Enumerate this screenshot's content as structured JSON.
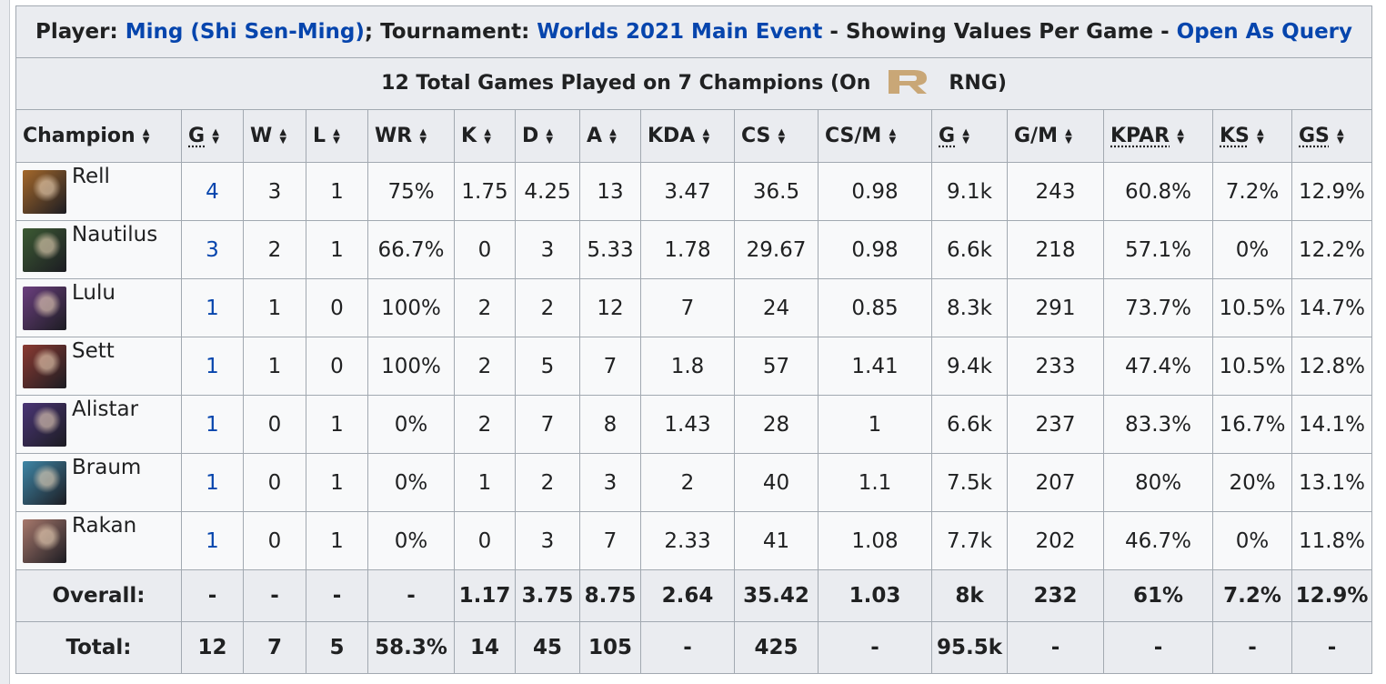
{
  "caption": {
    "player_label": "Player:",
    "player_link": "Ming (Shi Sen-Ming)",
    "sep1": ";",
    "tournament_label": "Tournament:",
    "tournament_link": "Worlds 2021 Main Event",
    "mid_text": "- Showing Values Per Game -",
    "query_link": "Open As Query"
  },
  "subtitle": {
    "prefix": "12 Total Games Played on 7 Champions (On",
    "team": "RNG)",
    "logo_color": "#c9a777"
  },
  "headers": [
    "Champion",
    "G",
    "W",
    "L",
    "WR",
    "K",
    "D",
    "A",
    "KDA",
    "CS",
    "CS/M",
    "G",
    "G/M",
    "KPAR",
    "KS",
    "GS"
  ],
  "champion_colors": {
    "Rell": "#a4682b",
    "Nautilus": "#3c5a33",
    "Lulu": "#6b3f7e",
    "Sett": "#8a3a32",
    "Alistar": "#4a3575",
    "Braum": "#3f86a6",
    "Rakan": "#a7786c"
  },
  "rows": [
    {
      "name": "Rell",
      "g": "4",
      "w": "3",
      "l": "1",
      "wr": "75%",
      "k": "1.75",
      "d": "4.25",
      "a": "13",
      "kda": "3.47",
      "cs": "36.5",
      "csm": "0.98",
      "gold": "9.1k",
      "gm": "243",
      "kpar": "60.8%",
      "ks": "7.2%",
      "gs": "12.9%"
    },
    {
      "name": "Nautilus",
      "g": "3",
      "w": "2",
      "l": "1",
      "wr": "66.7%",
      "k": "0",
      "d": "3",
      "a": "5.33",
      "kda": "1.78",
      "cs": "29.67",
      "csm": "0.98",
      "gold": "6.6k",
      "gm": "218",
      "kpar": "57.1%",
      "ks": "0%",
      "gs": "12.2%"
    },
    {
      "name": "Lulu",
      "g": "1",
      "w": "1",
      "l": "0",
      "wr": "100%",
      "k": "2",
      "d": "2",
      "a": "12",
      "kda": "7",
      "cs": "24",
      "csm": "0.85",
      "gold": "8.3k",
      "gm": "291",
      "kpar": "73.7%",
      "ks": "10.5%",
      "gs": "14.7%"
    },
    {
      "name": "Sett",
      "g": "1",
      "w": "1",
      "l": "0",
      "wr": "100%",
      "k": "2",
      "d": "5",
      "a": "7",
      "kda": "1.8",
      "cs": "57",
      "csm": "1.41",
      "gold": "9.4k",
      "gm": "233",
      "kpar": "47.4%",
      "ks": "10.5%",
      "gs": "12.8%"
    },
    {
      "name": "Alistar",
      "g": "1",
      "w": "0",
      "l": "1",
      "wr": "0%",
      "k": "2",
      "d": "7",
      "a": "8",
      "kda": "1.43",
      "cs": "28",
      "csm": "1",
      "gold": "6.6k",
      "gm": "237",
      "kpar": "83.3%",
      "ks": "16.7%",
      "gs": "14.1%"
    },
    {
      "name": "Braum",
      "g": "1",
      "w": "0",
      "l": "1",
      "wr": "0%",
      "k": "1",
      "d": "2",
      "a": "3",
      "kda": "2",
      "cs": "40",
      "csm": "1.1",
      "gold": "7.5k",
      "gm": "207",
      "kpar": "80%",
      "ks": "20%",
      "gs": "13.1%"
    },
    {
      "name": "Rakan",
      "g": "1",
      "w": "0",
      "l": "1",
      "wr": "0%",
      "k": "0",
      "d": "3",
      "a": "7",
      "kda": "2.33",
      "cs": "41",
      "csm": "1.08",
      "gold": "7.7k",
      "gm": "202",
      "kpar": "46.7%",
      "ks": "0%",
      "gs": "11.8%"
    }
  ],
  "overall": {
    "label": "Overall:",
    "g": "-",
    "w": "-",
    "l": "-",
    "wr": "-",
    "k": "1.17",
    "d": "3.75",
    "a": "8.75",
    "kda": "2.64",
    "cs": "35.42",
    "csm": "1.03",
    "gold": "8k",
    "gm": "232",
    "kpar": "61%",
    "ks": "7.2%",
    "gs": "12.9%"
  },
  "total": {
    "label": "Total:",
    "g": "12",
    "w": "7",
    "l": "5",
    "wr": "58.3%",
    "k": "14",
    "d": "45",
    "a": "105",
    "kda": "-",
    "cs": "425",
    "csm": "-",
    "gold": "95.5k",
    "gm": "-",
    "kpar": "-",
    "ks": "-",
    "gs": "-"
  }
}
